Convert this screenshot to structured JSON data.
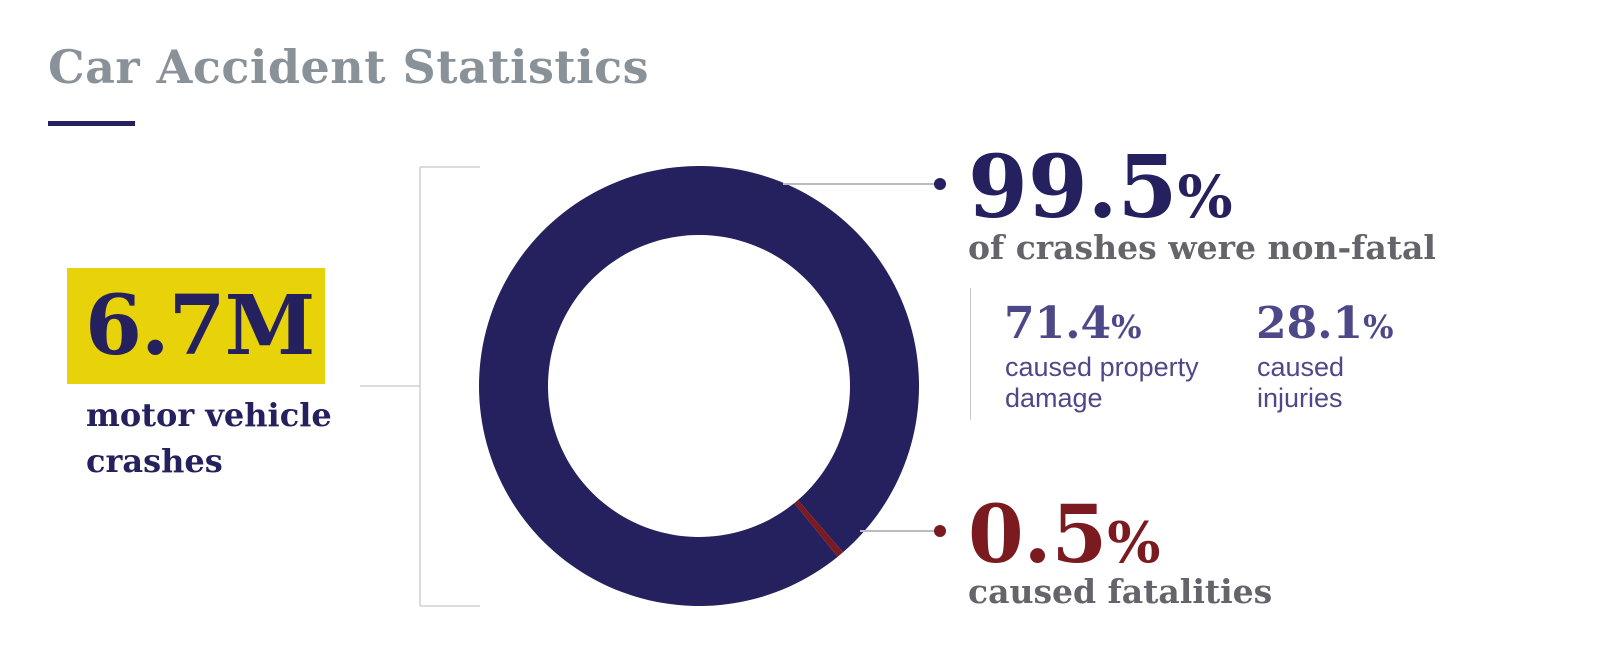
{
  "title": "Car Accident Statistics",
  "colors": {
    "accent_navy": "#25205e",
    "highlight_yellow": "#e8d30a",
    "fatal_red": "#7b1a1f",
    "muted_gray": "#8a9299",
    "sub_purple": "#4d4888"
  },
  "total": {
    "value": "6.7M",
    "label": "motor vehicle crashes"
  },
  "non_fatal": {
    "number": "99.5",
    "unit": "%",
    "label": "of crashes were non-fatal"
  },
  "property_damage": {
    "number": "71.4",
    "unit": "%",
    "label": "caused property damage"
  },
  "injuries": {
    "number": "28.1",
    "unit": "%",
    "label": "caused injuries"
  },
  "fatal": {
    "number": "0.5",
    "unit": "%",
    "label": "caused fatalities"
  },
  "chart_data": {
    "type": "pie",
    "labels": [
      "non-fatal",
      "fatalities"
    ],
    "values": [
      99.5,
      0.5
    ],
    "colors": [
      "#25205e",
      "#7b1a1f"
    ],
    "title": ""
  }
}
